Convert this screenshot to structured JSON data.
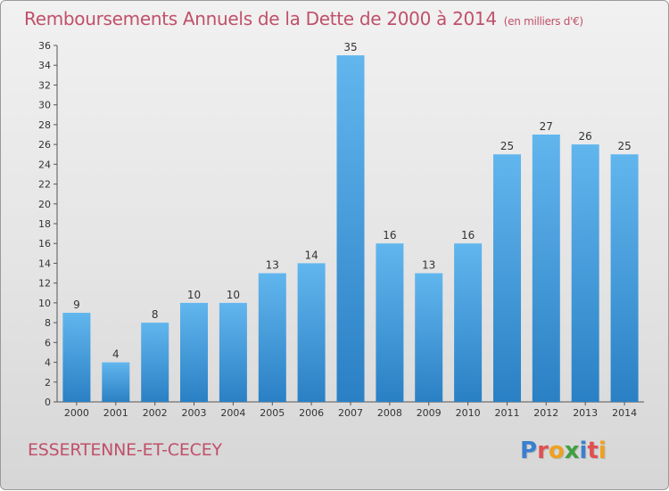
{
  "header": {
    "title": "Remboursements Annuels de la Dette de 2000 à 2014",
    "unit": "(en milliers d'€)"
  },
  "footer": {
    "commune": "ESSERTENNE-ET-CECEY",
    "logo_letters": [
      "P",
      "r",
      "o",
      "x",
      "i",
      "t",
      "i"
    ],
    "logo_colors": [
      "#3a7fd0",
      "#e05050",
      "#f0a020",
      "#40a040",
      "#3a7fd0",
      "#e05050",
      "#f0a020"
    ]
  },
  "chart_data": {
    "type": "bar",
    "title": "Remboursements Annuels de la Dette de 2000 à 2014",
    "subtitle": "(en milliers d'€)",
    "xlabel": "",
    "ylabel": "",
    "categories": [
      "2000",
      "2001",
      "2002",
      "2003",
      "2004",
      "2005",
      "2006",
      "2007",
      "2008",
      "2009",
      "2010",
      "2011",
      "2012",
      "2013",
      "2014"
    ],
    "values": [
      9,
      4,
      8,
      10,
      10,
      13,
      14,
      35,
      16,
      13,
      16,
      25,
      27,
      26,
      25
    ],
    "ylim": [
      0,
      36
    ],
    "ytick_step": 2,
    "grid": false,
    "bar_color_light": "#62b6ee",
    "bar_color_dark": "#2a80c4"
  }
}
